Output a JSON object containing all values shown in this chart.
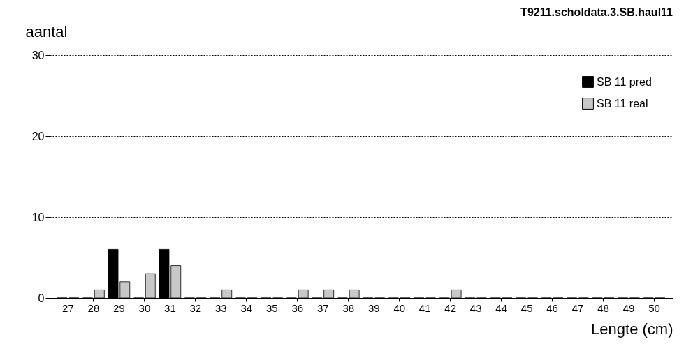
{
  "chart_data": {
    "type": "bar",
    "title": "T9211.scholdata.3.SB.haul11",
    "xlabel": "Lengte  (cm)",
    "ylabel": "aantal",
    "categories": [
      "27",
      "28",
      "29",
      "30",
      "31",
      "32",
      "33",
      "34",
      "35",
      "36",
      "37",
      "38",
      "39",
      "40",
      "41",
      "42",
      "43",
      "44",
      "45",
      "46",
      "47",
      "48",
      "49",
      "50"
    ],
    "series": [
      {
        "name": "SB 11 pred",
        "color": "#000000",
        "values": [
          0,
          0,
          6,
          0,
          6,
          0,
          0,
          0,
          0,
          0,
          0,
          0,
          0,
          0,
          0,
          0,
          0,
          0,
          0,
          0,
          0,
          0,
          0,
          0
        ]
      },
      {
        "name": "SB 11 real",
        "color": "#c8c8c8",
        "values": [
          0,
          1,
          2,
          3,
          4,
          0,
          1,
          0,
          0,
          1,
          1,
          1,
          0,
          0,
          0,
          1,
          0,
          0,
          0,
          0,
          0,
          0,
          0,
          0
        ]
      }
    ],
    "ylim": [
      0,
      30
    ],
    "yticks": [
      0,
      10,
      20,
      30
    ],
    "grid": "y",
    "legend": "top right"
  }
}
